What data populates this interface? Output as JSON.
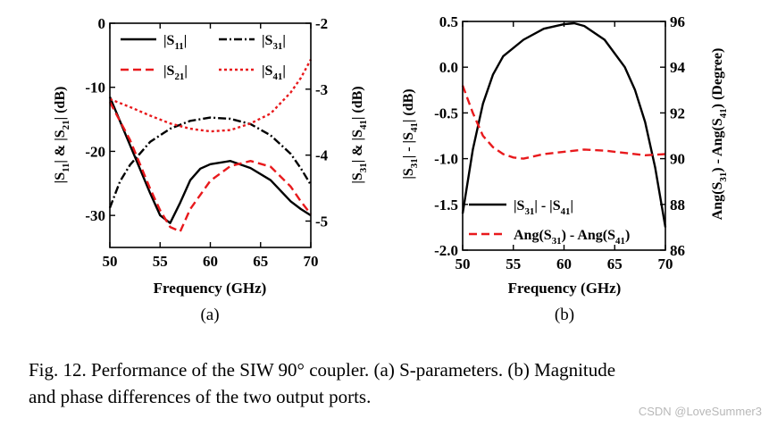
{
  "chart_data": [
    {
      "id": "a",
      "type": "line",
      "panel_label": "(a)",
      "xlabel": "Frequency (GHz)",
      "ylabel_left": "|S11| & |S21| (dB)",
      "ylabel_right": "|S31| & |S41| (dB)",
      "xlim": [
        50,
        70
      ],
      "ylim_left": [
        -35,
        0
      ],
      "ylim_right": [
        -5.4,
        -2
      ],
      "x_ticks": [
        50,
        55,
        60,
        65,
        70
      ],
      "y_ticks_left": [
        0,
        -10,
        -20,
        -30
      ],
      "y_ticks_right": [
        -2,
        -3,
        -4,
        -5
      ],
      "legend_position": "top",
      "series": [
        {
          "name": "|S11|",
          "axis": "left",
          "style": "solid",
          "color": "#000000",
          "x": [
            50,
            52,
            54,
            55,
            56,
            57,
            58,
            59,
            60,
            62,
            64,
            66,
            68,
            69,
            70
          ],
          "y": [
            -11.5,
            -19,
            -26.5,
            -30,
            -31.2,
            -28,
            -24.5,
            -22.7,
            -22,
            -21.5,
            -22.6,
            -24.5,
            -27.8,
            -29,
            -30
          ]
        },
        {
          "name": "|S21|",
          "axis": "left",
          "style": "dashed",
          "color": "#e8191c",
          "x": [
            50,
            52,
            54,
            55,
            56,
            57,
            58,
            60,
            62,
            64,
            66,
            68,
            69,
            70
          ],
          "y": [
            -12.3,
            -18.2,
            -25.8,
            -29.2,
            -31.8,
            -32.5,
            -29,
            -24.6,
            -22.3,
            -21.5,
            -22.4,
            -25.5,
            -27.8,
            -29.8
          ]
        },
        {
          "name": "|S31|",
          "axis": "right",
          "style": "dashdot",
          "color": "#000000",
          "x": [
            50,
            51,
            52,
            54,
            56,
            58,
            60,
            62,
            64,
            66,
            68,
            69,
            70
          ],
          "y": [
            -4.8,
            -4.4,
            -4.15,
            -3.8,
            -3.6,
            -3.48,
            -3.43,
            -3.45,
            -3.53,
            -3.7,
            -3.98,
            -4.2,
            -4.45
          ]
        },
        {
          "name": "|S41|",
          "axis": "right",
          "style": "dotted",
          "color": "#e8191c",
          "x": [
            50,
            52,
            54,
            56,
            58,
            60,
            62,
            64,
            66,
            68,
            69,
            70
          ],
          "y": [
            -3.15,
            -3.27,
            -3.4,
            -3.52,
            -3.6,
            -3.64,
            -3.62,
            -3.52,
            -3.37,
            -3.05,
            -2.83,
            -2.55
          ]
        }
      ]
    },
    {
      "id": "b",
      "type": "line",
      "panel_label": "(b)",
      "xlabel": "Frequency (GHz)",
      "ylabel_left": "|S31| - |S41| (dB)",
      "ylabel_right": "Ang(S31) - Ang(S41) (Degree)",
      "xlim": [
        50,
        70
      ],
      "ylim_left": [
        -2.0,
        0.5
      ],
      "ylim_right": [
        86,
        96
      ],
      "x_ticks": [
        50,
        55,
        60,
        65,
        70
      ],
      "y_ticks_left": [
        0.5,
        0.0,
        -0.5,
        -1.0,
        -1.5,
        -2.0
      ],
      "y_ticks_left_labels": [
        "0.5",
        "0.0",
        "-0.5",
        "-1.0",
        "-1.5",
        "-2.0"
      ],
      "y_ticks_right": [
        96,
        94,
        92,
        90,
        88,
        86
      ],
      "legend_position": "bottom-center",
      "series": [
        {
          "name": "|S31| - |S41|",
          "axis": "left",
          "style": "solid",
          "color": "#000000",
          "x": [
            50,
            51,
            52,
            53,
            54,
            56,
            58,
            60,
            61,
            62,
            64,
            66,
            67,
            68,
            69,
            70
          ],
          "y": [
            -1.6,
            -0.9,
            -0.4,
            -0.08,
            0.12,
            0.3,
            0.42,
            0.47,
            0.48,
            0.45,
            0.3,
            0.0,
            -0.25,
            -0.6,
            -1.1,
            -1.75
          ]
        },
        {
          "name": "Ang(S31) - Ang(S41)",
          "axis": "right",
          "style": "dashed",
          "color": "#e8191c",
          "x": [
            50,
            51,
            52,
            53,
            54,
            55,
            56,
            58,
            60,
            62,
            64,
            66,
            68,
            70
          ],
          "y": [
            93.2,
            92,
            91,
            90.5,
            90.2,
            90.05,
            90.0,
            90.2,
            90.3,
            90.4,
            90.35,
            90.25,
            90.15,
            90.2
          ]
        }
      ]
    }
  ],
  "caption": {
    "line1": "Fig. 12. Performance of the SIW 90° coupler. (a) S-parameters. (b) Magnitude",
    "line2": "and phase differences of the two output ports."
  },
  "watermark": "CSDN @LoveSummer3"
}
